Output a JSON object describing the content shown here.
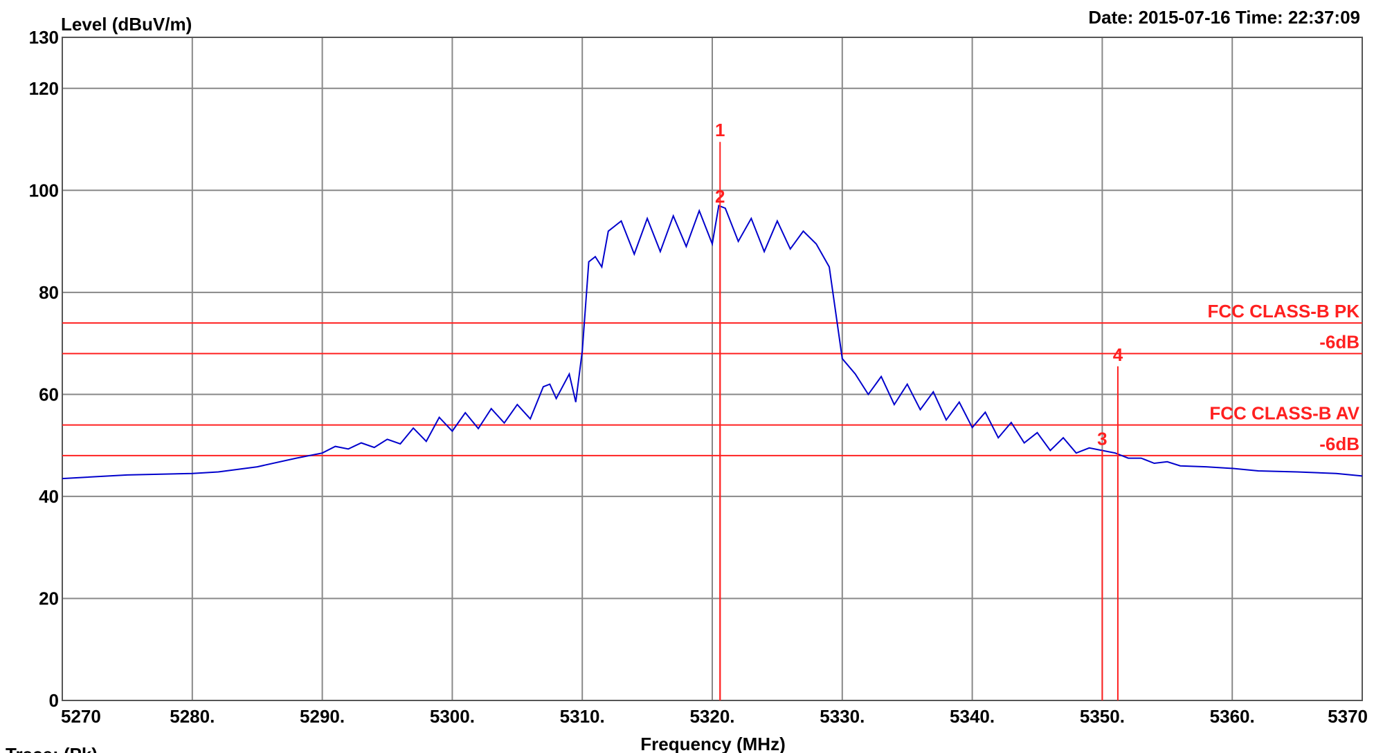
{
  "header": {
    "date_time": "Date: 2015-07-16  Time: 22:37:09",
    "trace_label": "Trace: (Pk)..."
  },
  "chart_data": {
    "type": "line",
    "ylabel": "Level (dBuV/m)",
    "xlabel": "Frequency (MHz)",
    "xlim": [
      5270,
      5370
    ],
    "ylim": [
      0,
      130
    ],
    "x_ticks": [
      5270,
      5280,
      5290,
      5300,
      5310,
      5320,
      5330,
      5340,
      5350,
      5360,
      5370
    ],
    "x_tick_labels": [
      "5270",
      "5280.",
      "5290.",
      "5300.",
      "5310.",
      "5320.",
      "5330.",
      "5340.",
      "5350.",
      "5360.",
      "5370"
    ],
    "y_ticks": [
      0,
      20,
      40,
      60,
      80,
      100,
      120,
      130
    ],
    "y_tick_labels": [
      "0",
      "20",
      "40",
      "60",
      "80",
      "100",
      "120",
      "130"
    ],
    "grid": true,
    "series": [
      {
        "color": "#0000cc",
        "x": [
          5270,
          5275,
          5280,
          5282,
          5285,
          5288,
          5290,
          5291,
          5292,
          5293,
          5294,
          5295,
          5296,
          5297,
          5298,
          5299,
          5300,
          5301,
          5302,
          5303,
          5304,
          5305,
          5306,
          5307,
          5307.5,
          5308,
          5309,
          5309.5,
          5310,
          5310.5,
          5311,
          5311.5,
          5312,
          5313,
          5314,
          5315,
          5316,
          5317,
          5318,
          5319,
          5320,
          5320.5,
          5321,
          5322,
          5323,
          5324,
          5325,
          5326,
          5327,
          5328,
          5329,
          5330,
          5331,
          5332,
          5333,
          5334,
          5335,
          5336,
          5337,
          5338,
          5339,
          5340,
          5341,
          5342,
          5343,
          5344,
          5345,
          5346,
          5347,
          5348,
          5349,
          5350,
          5351,
          5352,
          5353,
          5354,
          5355,
          5356,
          5358,
          5360,
          5362,
          5365,
          5368,
          5370
        ],
        "y": [
          43.5,
          44.2,
          44.5,
          44.8,
          45.8,
          47.5,
          48.5,
          49.8,
          49.3,
          50.5,
          49.6,
          51.2,
          50.3,
          53.4,
          50.8,
          55.5,
          52.8,
          56.4,
          53.3,
          57.2,
          54.4,
          58.0,
          55.2,
          61.5,
          62.0,
          59.2,
          64.0,
          58.5,
          68.5,
          86.0,
          87.0,
          85.0,
          92.0,
          94.0,
          87.5,
          94.5,
          88.0,
          95.0,
          89.0,
          96.0,
          89.5,
          97.0,
          96.5,
          90.0,
          94.5,
          88.0,
          94.0,
          88.5,
          92.0,
          89.5,
          85.0,
          67.0,
          64.0,
          60.0,
          63.5,
          58.0,
          62.0,
          57.0,
          60.5,
          55.0,
          58.5,
          53.5,
          56.5,
          51.5,
          54.5,
          50.5,
          52.5,
          49.0,
          51.5,
          48.5,
          49.5,
          49.0,
          48.5,
          47.5,
          47.5,
          46.5,
          46.8,
          46.0,
          45.8,
          45.5,
          45.0,
          44.8,
          44.5,
          44.0
        ]
      }
    ],
    "limit_lines": [
      {
        "y": 74,
        "label": "FCC CLASS-B PK"
      },
      {
        "y": 68,
        "label": "-6dB"
      },
      {
        "y": 54,
        "label": "FCC CLASS-B AV"
      },
      {
        "y": 48,
        "label": "-6dB"
      }
    ],
    "markers": [
      {
        "label": "1",
        "x": 5320.6,
        "y": 109.5
      },
      {
        "label": "2",
        "x": 5320.6,
        "y": 96.5
      },
      {
        "label": "3",
        "x": 5350.0,
        "y": 49.0
      },
      {
        "label": "4",
        "x": 5351.2,
        "y": 65.5
      }
    ]
  }
}
